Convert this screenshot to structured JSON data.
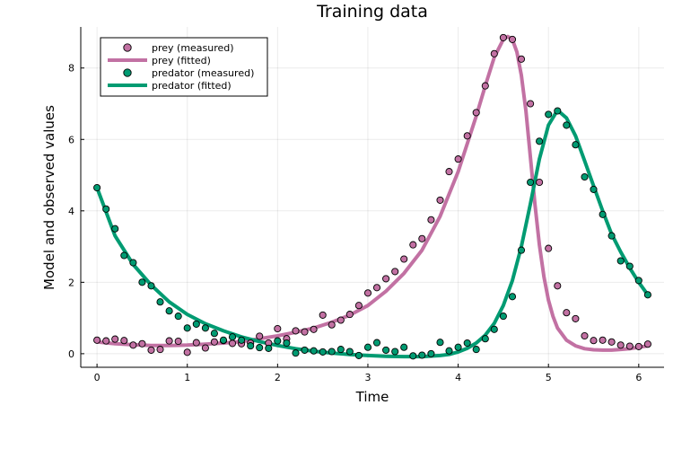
{
  "chart_data": {
    "type": "scatter",
    "title": "Training data",
    "xlabel": "Time",
    "ylabel": "Model and observed values",
    "xlim": [
      -0.18,
      6.28
    ],
    "ylim": [
      -0.38,
      9.15
    ],
    "xticks": [
      0,
      1,
      2,
      3,
      4,
      5,
      6
    ],
    "yticks": [
      0,
      2,
      4,
      6,
      8
    ],
    "grid": true,
    "legend_position": "top-left",
    "series": [
      {
        "name": "prey (measured)",
        "kind": "scatter",
        "color": "#c271a3",
        "x": [
          0.0,
          0.1,
          0.2,
          0.3,
          0.4,
          0.5,
          0.6,
          0.7,
          0.8,
          0.9,
          1.0,
          1.1,
          1.2,
          1.3,
          1.4,
          1.5,
          1.6,
          1.7,
          1.8,
          1.9,
          2.0,
          2.1,
          2.2,
          2.3,
          2.4,
          2.5,
          2.6,
          2.7,
          2.8,
          2.9,
          3.0,
          3.1,
          3.2,
          3.3,
          3.4,
          3.5,
          3.6,
          3.7,
          3.8,
          3.9,
          4.0,
          4.1,
          4.2,
          4.3,
          4.4,
          4.5,
          4.6,
          4.7,
          4.8,
          4.9,
          5.0,
          5.1,
          5.2,
          5.3,
          5.4,
          5.5,
          5.6,
          5.7,
          5.8,
          5.9,
          6.0,
          6.1
        ],
        "y": [
          0.38,
          0.36,
          0.41,
          0.37,
          0.24,
          0.28,
          0.1,
          0.12,
          0.36,
          0.35,
          0.04,
          0.31,
          0.16,
          0.33,
          0.37,
          0.29,
          0.28,
          0.3,
          0.49,
          0.3,
          0.7,
          0.42,
          0.64,
          0.61,
          0.68,
          1.08,
          0.81,
          0.94,
          1.1,
          1.35,
          1.7,
          1.85,
          2.1,
          2.3,
          2.65,
          3.05,
          3.22,
          3.75,
          4.3,
          5.1,
          5.45,
          6.1,
          6.75,
          7.5,
          8.4,
          8.85,
          8.8,
          8.25,
          7.0,
          4.8,
          2.95,
          1.9,
          1.15,
          0.98,
          0.5,
          0.37,
          0.38,
          0.33,
          0.24,
          0.21,
          0.2,
          0.27
        ]
      },
      {
        "name": "prey (fitted)",
        "kind": "line",
        "color": "#c271a3",
        "x": [
          0.0,
          0.2,
          0.4,
          0.6,
          0.8,
          1.0,
          1.2,
          1.4,
          1.6,
          1.8,
          2.0,
          2.2,
          2.4,
          2.6,
          2.8,
          3.0,
          3.2,
          3.4,
          3.6,
          3.8,
          4.0,
          4.2,
          4.3,
          4.4,
          4.5,
          4.55,
          4.6,
          4.65,
          4.7,
          4.75,
          4.8,
          4.85,
          4.9,
          4.95,
          5.0,
          5.05,
          5.1,
          5.2,
          5.3,
          5.4,
          5.5,
          5.6,
          5.7,
          5.8,
          5.9,
          6.0,
          6.1
        ],
        "y": [
          0.33,
          0.28,
          0.25,
          0.23,
          0.23,
          0.24,
          0.27,
          0.3,
          0.34,
          0.42,
          0.5,
          0.6,
          0.72,
          0.88,
          1.08,
          1.35,
          1.75,
          2.25,
          2.9,
          3.85,
          5.1,
          6.65,
          7.5,
          8.3,
          8.8,
          8.88,
          8.8,
          8.45,
          7.8,
          6.8,
          5.5,
          4.2,
          3.05,
          2.15,
          1.5,
          1.05,
          0.72,
          0.38,
          0.22,
          0.14,
          0.11,
          0.1,
          0.1,
          0.12,
          0.14,
          0.18,
          0.22
        ]
      },
      {
        "name": "predator (measured)",
        "kind": "scatter",
        "color": "#009b72",
        "x": [
          0.0,
          0.1,
          0.2,
          0.3,
          0.4,
          0.5,
          0.6,
          0.7,
          0.8,
          0.9,
          1.0,
          1.1,
          1.2,
          1.3,
          1.4,
          1.5,
          1.6,
          1.7,
          1.8,
          1.9,
          2.0,
          2.1,
          2.2,
          2.3,
          2.4,
          2.5,
          2.6,
          2.7,
          2.8,
          2.9,
          3.0,
          3.1,
          3.2,
          3.3,
          3.4,
          3.5,
          3.6,
          3.7,
          3.8,
          3.9,
          4.0,
          4.1,
          4.2,
          4.3,
          4.4,
          4.5,
          4.6,
          4.7,
          4.8,
          4.9,
          5.0,
          5.1,
          5.2,
          5.3,
          5.4,
          5.5,
          5.6,
          5.7,
          5.8,
          5.9,
          6.0,
          6.1
        ],
        "y": [
          4.65,
          4.05,
          3.5,
          2.75,
          2.55,
          2.0,
          1.9,
          1.45,
          1.2,
          1.05,
          0.72,
          0.83,
          0.72,
          0.57,
          0.38,
          0.47,
          0.38,
          0.22,
          0.17,
          0.15,
          0.36,
          0.3,
          0.02,
          0.1,
          0.08,
          0.05,
          0.06,
          0.12,
          0.06,
          -0.05,
          0.18,
          0.31,
          0.1,
          0.06,
          0.18,
          -0.06,
          -0.04,
          0.0,
          0.32,
          0.08,
          0.18,
          0.3,
          0.12,
          0.42,
          0.68,
          1.05,
          1.6,
          2.9,
          4.8,
          5.95,
          6.7,
          6.8,
          6.4,
          5.85,
          4.95,
          4.6,
          3.9,
          3.3,
          2.6,
          2.45,
          2.05,
          1.65
        ]
      },
      {
        "name": "predator (fitted)",
        "kind": "line",
        "color": "#009b72",
        "x": [
          0.0,
          0.2,
          0.4,
          0.6,
          0.8,
          1.0,
          1.2,
          1.4,
          1.6,
          1.8,
          2.0,
          2.2,
          2.4,
          2.6,
          2.8,
          3.0,
          3.2,
          3.4,
          3.6,
          3.8,
          3.9,
          4.0,
          4.1,
          4.2,
          4.3,
          4.4,
          4.5,
          4.6,
          4.7,
          4.8,
          4.9,
          5.0,
          5.1,
          5.2,
          5.3,
          5.4,
          5.5,
          5.6,
          5.7,
          5.8,
          5.9,
          6.0,
          6.1
        ],
        "y": [
          4.65,
          3.3,
          2.5,
          1.92,
          1.45,
          1.1,
          0.84,
          0.64,
          0.47,
          0.34,
          0.23,
          0.14,
          0.07,
          0.02,
          -0.02,
          -0.05,
          -0.07,
          -0.08,
          -0.08,
          -0.05,
          -0.02,
          0.05,
          0.15,
          0.3,
          0.52,
          0.85,
          1.35,
          2.05,
          3.0,
          4.2,
          5.45,
          6.4,
          6.82,
          6.6,
          6.1,
          5.4,
          4.7,
          4.0,
          3.35,
          2.85,
          2.4,
          2.0,
          1.65
        ]
      }
    ]
  }
}
